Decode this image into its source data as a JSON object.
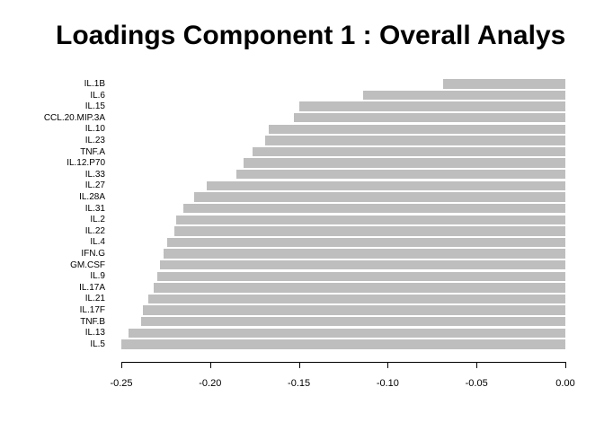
{
  "chart_data": {
    "type": "bar",
    "orientation": "horizontal",
    "title": "Loadings Component 1 : Overall Analys",
    "categories": [
      "IL.1B",
      "IL.6",
      "IL.15",
      "CCL.20.MIP.3A",
      "IL.10",
      "IL.23",
      "TNF.A",
      "IL.12.P70",
      "IL.33",
      "IL.27",
      "IL.28A",
      "IL.31",
      "IL.2",
      "IL.22",
      "IL.4",
      "IFN.G",
      "GM.CSF",
      "IL.9",
      "IL.17A",
      "IL.21",
      "IL.17F",
      "TNF.B",
      "IL.13",
      "IL.5"
    ],
    "values": [
      -0.069,
      -0.114,
      -0.15,
      -0.153,
      -0.167,
      -0.169,
      -0.176,
      -0.181,
      -0.185,
      -0.202,
      -0.209,
      -0.215,
      -0.219,
      -0.22,
      -0.224,
      -0.226,
      -0.228,
      -0.23,
      -0.232,
      -0.235,
      -0.238,
      -0.239,
      -0.246,
      -0.25
    ],
    "xlim": [
      -0.25,
      0.0
    ],
    "x_ticks": [
      -0.25,
      -0.2,
      -0.15,
      -0.1,
      -0.05,
      0.0
    ],
    "x_tick_labels": [
      "-0.25",
      "-0.20",
      "-0.15",
      "-0.10",
      "-0.05",
      "0.00"
    ],
    "bar_color": "#BEBEBE",
    "background_color": "#FFFFFF",
    "text_color": "#000000",
    "grid": false,
    "legend": false
  }
}
